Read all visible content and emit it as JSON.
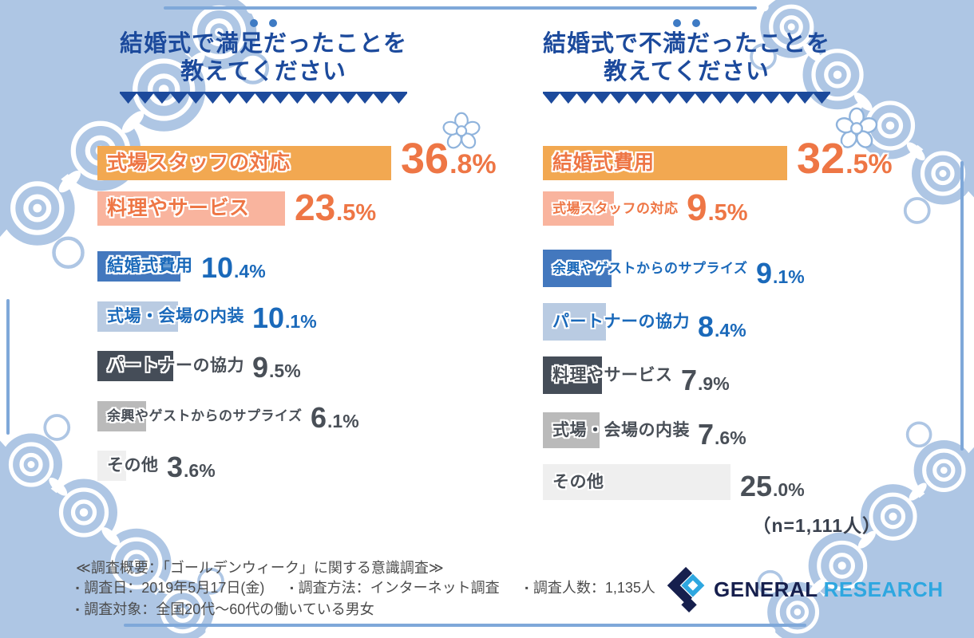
{
  "page": {
    "background": "#FFFFFF",
    "lace_color": "#AEC6E4",
    "accent_line_color": "#7FA8D9",
    "title_color": "#1C4A9C"
  },
  "chart_data": [
    {
      "type": "bar",
      "orientation": "horizontal",
      "title": "結婚式で満足だったことを教えてください",
      "title_lines": [
        "結婚式で満足だったことを",
        "教えてください"
      ],
      "categories": [
        "式場スタッフの対応",
        "料理やサービス",
        "結婚式費用",
        "式場・会場の内装",
        "パートナーの協力",
        "余興やゲストからのサプライズ",
        "その他"
      ],
      "values": [
        36.8,
        23.5,
        10.4,
        10.1,
        9.5,
        6.1,
        3.6
      ],
      "unit": "%",
      "xlim": [
        0,
        40
      ],
      "grid": false,
      "legend": false,
      "bar_colors": [
        "#F2A851",
        "#F9B49E",
        "#4378BE",
        "#B9CBE2",
        "#454D58",
        "#BABABA",
        "#EFEFEF"
      ],
      "text_colors": [
        "#EE7645",
        "#EE7645",
        "#1A69BA",
        "#1A69BA",
        "#494F57",
        "#494F57",
        "#494F57"
      ]
    },
    {
      "type": "bar",
      "orientation": "horizontal",
      "title": "結婚式で不満だったことを教えてください",
      "title_lines": [
        "結婚式で不満だったことを",
        "教えてください"
      ],
      "categories": [
        "結婚式費用",
        "式場スタッフの対応",
        "余興やゲストからのサプライズ",
        "パートナーの協力",
        "料理やサービス",
        "式場・会場の内装",
        "その他"
      ],
      "values": [
        32.5,
        9.5,
        9.1,
        8.4,
        7.9,
        7.6,
        25.0
      ],
      "unit": "%",
      "xlim": [
        0,
        40
      ],
      "grid": false,
      "legend": false,
      "bar_colors": [
        "#F2A851",
        "#F9B49E",
        "#4378BE",
        "#B9CBE2",
        "#454D58",
        "#BABABA",
        "#EFEFEF"
      ],
      "text_colors": [
        "#EE7645",
        "#EE7645",
        "#1A69BA",
        "#1A69BA",
        "#494F57",
        "#494F57",
        "#494F57"
      ],
      "sample_note": "（n=1,111人）"
    }
  ],
  "survey": {
    "heading": "≪調査概要：「ゴールデンウィーク」に関する意識調査≫",
    "bullet": "▪",
    "items": [
      "調査日：2019年5月17日(金)",
      "調査方法：インターネット調査",
      "調査人数：1,135人",
      "調査対象：全国20代～60代の働いている男女"
    ]
  },
  "logo": {
    "part1": "GENERAL",
    "part2": "RESEARCH",
    "color1": "#161F4D",
    "color2": "#2EA7E0"
  }
}
